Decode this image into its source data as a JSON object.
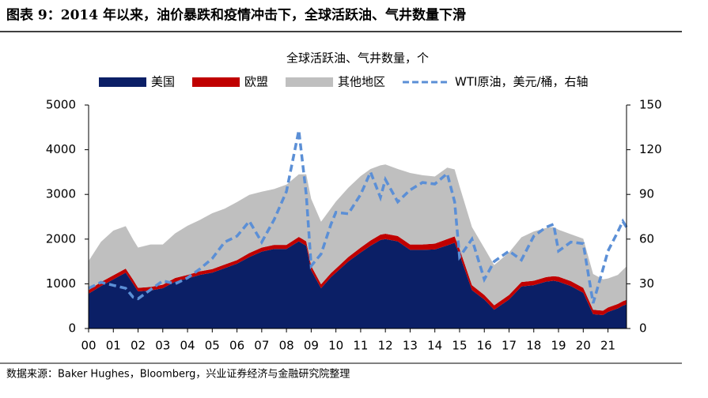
{
  "header": {
    "title": "图表 9：2014 年以来，油价暴跌和疫情冲击下，全球活跃油、气井数量下滑"
  },
  "footer": {
    "source": "数据来源：Baker Hughes，Bloomberg，兴业证券经济与金融研究院整理"
  },
  "chart_data": {
    "type": "area",
    "stacked": true,
    "title": "全球活跃油、气井数量，个",
    "x": [
      2000.0,
      2000.5,
      2001.0,
      2001.5,
      2001.8,
      2002.0,
      2002.5,
      2003.0,
      2003.5,
      2004.0,
      2004.5,
      2005.0,
      2005.5,
      2006.0,
      2006.5,
      2007.0,
      2007.5,
      2008.0,
      2008.5,
      2008.8,
      2009.0,
      2009.4,
      2009.8,
      2010.0,
      2010.5,
      2011.0,
      2011.4,
      2011.8,
      2012.0,
      2012.5,
      2013.0,
      2013.5,
      2014.0,
      2014.5,
      2014.8,
      2015.0,
      2015.5,
      2016.0,
      2016.4,
      2017.0,
      2017.5,
      2018.0,
      2018.5,
      2018.8,
      2019.0,
      2019.5,
      2020.0,
      2020.4,
      2020.8,
      2021.0,
      2021.4,
      2021.6,
      2021.75
    ],
    "series": [
      {
        "name": "美国",
        "color": "#0b1f66",
        "values": [
          780,
          950,
          1100,
          1250,
          1000,
          830,
          850,
          900,
          1050,
          1120,
          1200,
          1250,
          1350,
          1450,
          1600,
          1720,
          1780,
          1780,
          1950,
          1850,
          1300,
          900,
          1150,
          1250,
          1500,
          1700,
          1850,
          1980,
          2000,
          1950,
          1760,
          1760,
          1770,
          1860,
          1920,
          1650,
          860,
          650,
          420,
          650,
          940,
          970,
          1050,
          1070,
          1050,
          950,
          800,
          320,
          300,
          370,
          450,
          510,
          540
        ]
      },
      {
        "name": "欧盟",
        "color": "#c00000",
        "values": [
          80,
          90,
          90,
          90,
          90,
          80,
          80,
          80,
          80,
          80,
          80,
          80,
          80,
          80,
          90,
          90,
          90,
          90,
          100,
          100,
          100,
          90,
          90,
          90,
          100,
          110,
          120,
          120,
          120,
          120,
          120,
          120,
          130,
          140,
          140,
          130,
          110,
          100,
          100,
          100,
          100,
          100,
          100,
          100,
          110,
          110,
          110,
          100,
          100,
          100,
          100,
          100,
          100
        ]
      },
      {
        "name": "其他地区",
        "color": "#bfbfbf",
        "values": [
          650,
          900,
          1000,
          950,
          900,
          900,
          950,
          900,
          1000,
          1100,
          1150,
          1250,
          1250,
          1300,
          1300,
          1250,
          1250,
          1350,
          1400,
          1500,
          1500,
          1400,
          1450,
          1500,
          1550,
          1600,
          1600,
          1550,
          1550,
          1500,
          1600,
          1550,
          1500,
          1600,
          1500,
          1400,
          1300,
          1050,
          900,
          950,
          1000,
          1100,
          1100,
          1100,
          1050,
          1050,
          1100,
          800,
          700,
          650,
          650,
          700,
          750
        ]
      },
      {
        "name": "WTI原油，美元/桶，右轴",
        "color": "#5b8fd6",
        "axis": "y2",
        "values": [
          27,
          31,
          29,
          27,
          21,
          20,
          26,
          32,
          30,
          34,
          40,
          47,
          58,
          62,
          72,
          58,
          73,
          92,
          133,
          90,
          42,
          50,
          70,
          78,
          77,
          90,
          105,
          88,
          100,
          85,
          93,
          98,
          97,
          104,
          85,
          48,
          60,
          33,
          45,
          52,
          46,
          62,
          68,
          70,
          52,
          58,
          57,
          17,
          40,
          52,
          65,
          72,
          68
        ]
      }
    ],
    "xlim": [
      2000,
      2021.75
    ],
    "xticks": [
      {
        "value": 2000,
        "label": "00"
      },
      {
        "value": 2001,
        "label": "01"
      },
      {
        "value": 2002,
        "label": "02"
      },
      {
        "value": 2003,
        "label": "03"
      },
      {
        "value": 2004,
        "label": "04"
      },
      {
        "value": 2005,
        "label": "05"
      },
      {
        "value": 2006,
        "label": "06"
      },
      {
        "value": 2007,
        "label": "07"
      },
      {
        "value": 2008,
        "label": "08"
      },
      {
        "value": 2009,
        "label": "09"
      },
      {
        "value": 2010,
        "label": "10"
      },
      {
        "value": 2011,
        "label": "11"
      },
      {
        "value": 2012,
        "label": "12"
      },
      {
        "value": 2013,
        "label": "13"
      },
      {
        "value": 2014,
        "label": "14"
      },
      {
        "value": 2015,
        "label": "15"
      },
      {
        "value": 2016,
        "label": "16"
      },
      {
        "value": 2017,
        "label": "17"
      },
      {
        "value": 2018,
        "label": "18"
      },
      {
        "value": 2019,
        "label": "19"
      },
      {
        "value": 2020,
        "label": "20"
      },
      {
        "value": 2021,
        "label": "21"
      }
    ],
    "ylim": [
      0,
      5000
    ],
    "yticks": [
      0,
      1000,
      2000,
      3000,
      4000,
      5000
    ],
    "y2lim": [
      0,
      150
    ],
    "y2ticks": [
      0,
      30,
      60,
      90,
      120,
      150
    ]
  }
}
